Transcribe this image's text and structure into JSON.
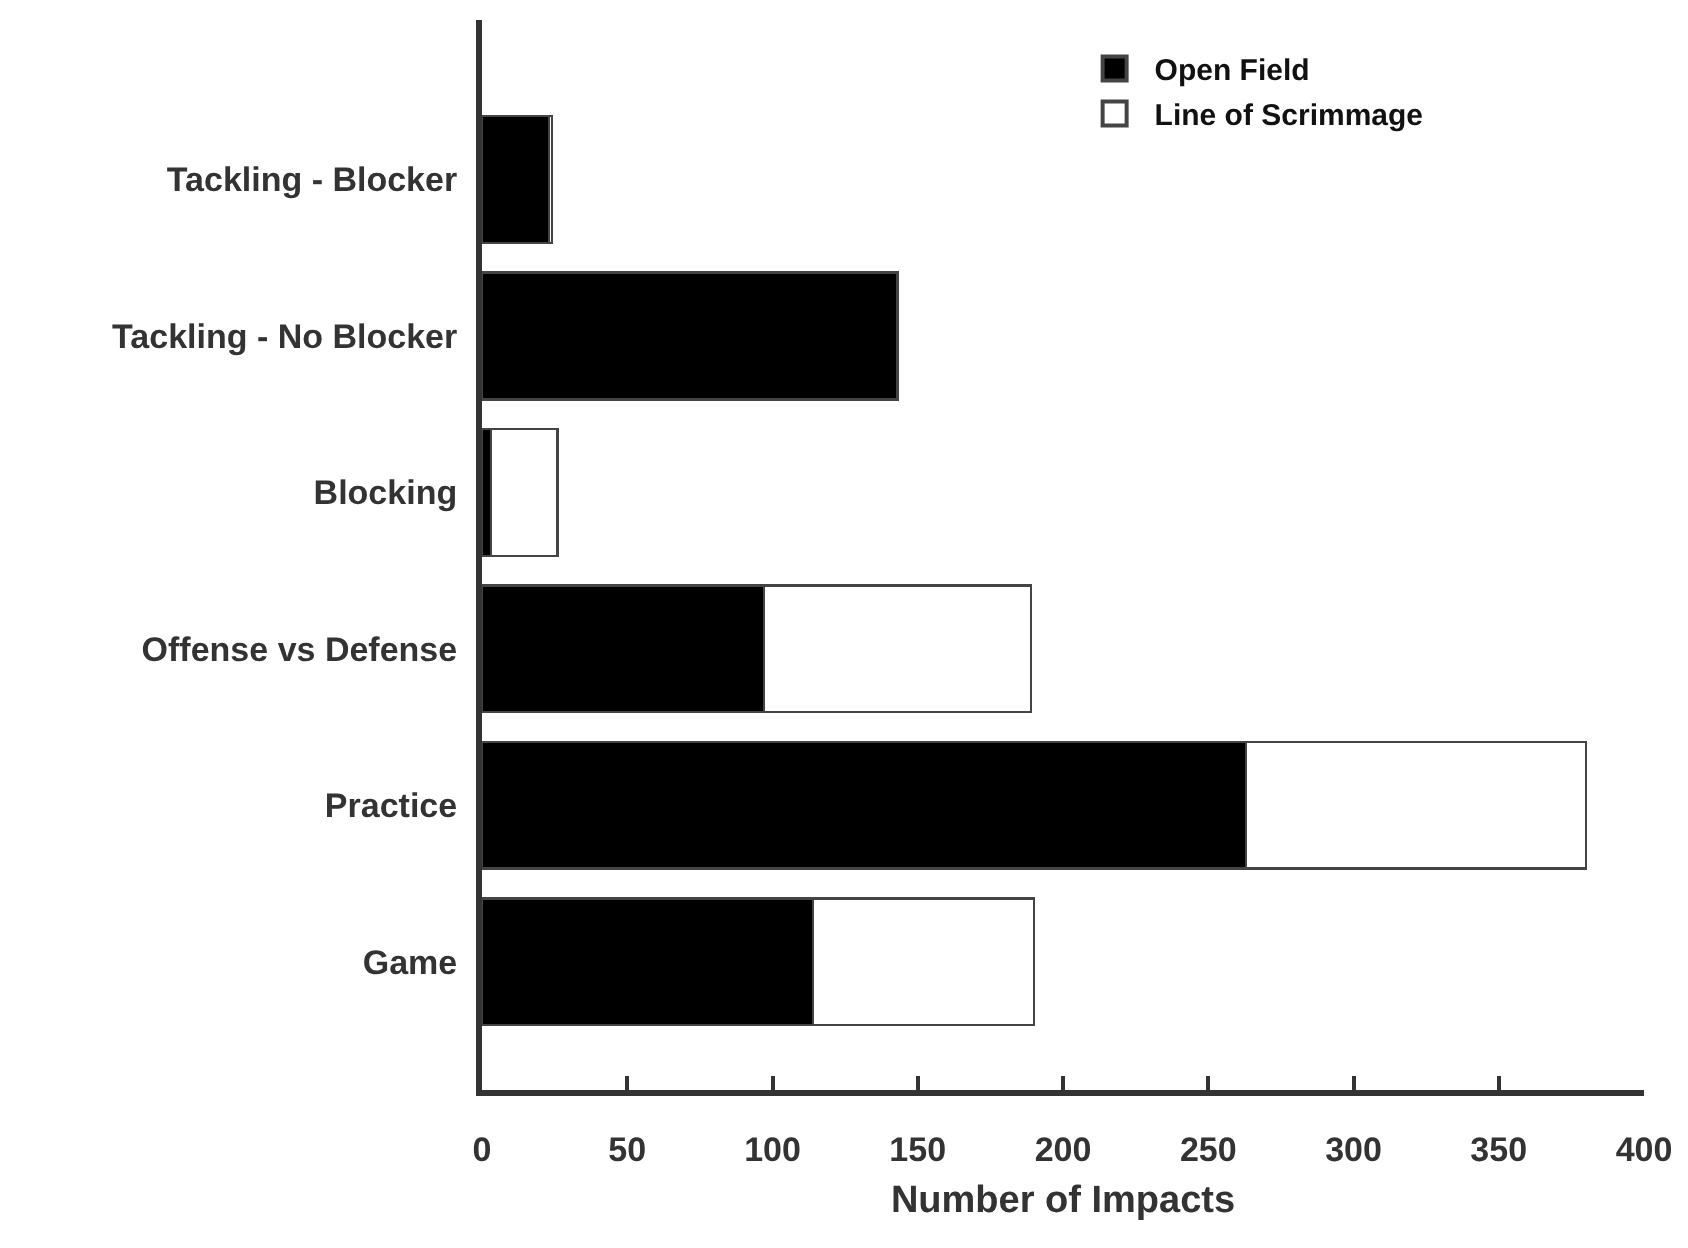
{
  "chart_data": {
    "type": "bar",
    "orientation": "horizontal",
    "stacked": true,
    "xlabel": "Number of Impacts",
    "categories": [
      "Tackling - Blocker",
      "Tackling - No Blocker",
      "Blocking",
      "Offense vs Defense",
      "Practice",
      "Game"
    ],
    "series": [
      {
        "name": "Open Field",
        "color": "#000000",
        "values": [
          23,
          143,
          3,
          97,
          263,
          114
        ]
      },
      {
        "name": "Line of Scrimmage",
        "color": "#ffffff",
        "values": [
          1,
          null,
          23,
          92,
          117,
          76
        ]
      }
    ],
    "xlim": [
      0,
      400
    ],
    "xticks": [
      0,
      50,
      100,
      150,
      200,
      250,
      300,
      350,
      400
    ],
    "legend": "top right"
  }
}
